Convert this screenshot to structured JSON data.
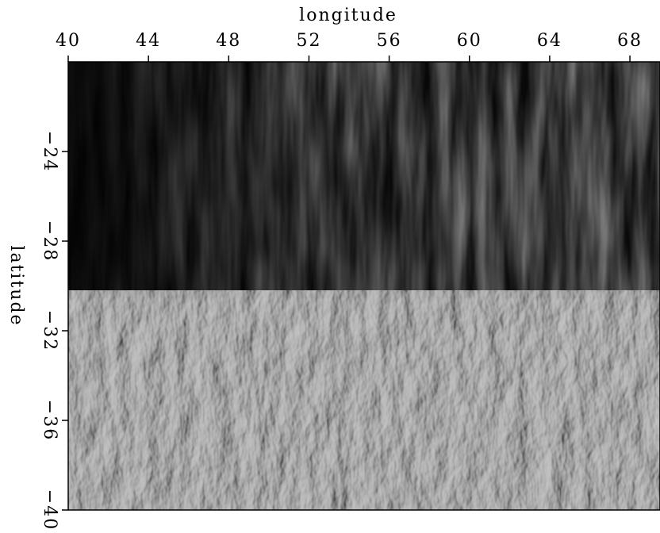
{
  "chart_data": {
    "type": "heatmap",
    "xlabel": "longitude",
    "ylabel": "latitude",
    "xlim": [
      40,
      69.5
    ],
    "ylim": [
      -40,
      -20
    ],
    "xticks": [
      40,
      44,
      48,
      52,
      56,
      60,
      64,
      68
    ],
    "yticks": [
      {
        "value": -24,
        "label": "−24"
      },
      {
        "value": -28,
        "label": "−28"
      },
      {
        "value": -32,
        "label": "−32"
      },
      {
        "value": -36,
        "label": "−36"
      },
      {
        "value": -40,
        "label": "−40"
      }
    ],
    "colormap": "gray"
  }
}
